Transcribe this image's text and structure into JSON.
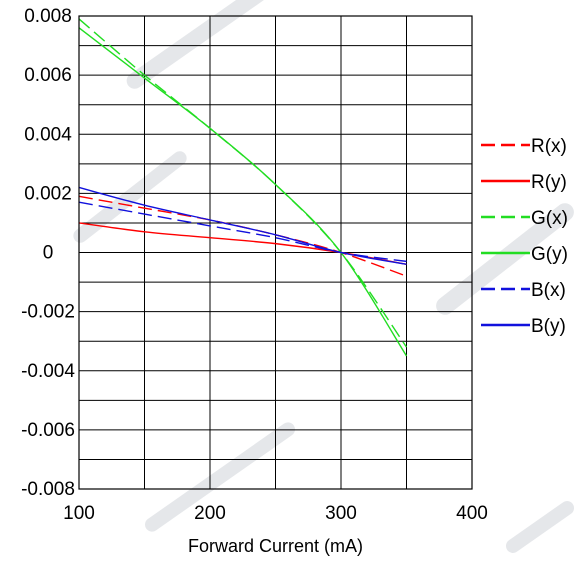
{
  "chart_data": {
    "type": "line",
    "title": "",
    "xlabel": "Forward Current (mA)",
    "ylabel": "",
    "xlim": [
      100,
      400
    ],
    "ylim": [
      -0.008,
      0.008
    ],
    "x_ticks": [
      100,
      200,
      300,
      400
    ],
    "y_ticks": [
      0.008,
      0.006,
      0.004,
      0.002,
      0,
      -0.002,
      -0.004,
      -0.006,
      -0.008
    ],
    "y_tick_labels": [
      "0.008",
      "0.006",
      "0.004",
      "0.002",
      "0",
      "-0.002",
      "-0.004",
      "-0.006",
      "-0.008"
    ],
    "grid": true,
    "legend_position": "right",
    "series": [
      {
        "name": "R(x)",
        "color": "#ff0000",
        "dash": true,
        "x": [
          100,
          150,
          200,
          250,
          300,
          350
        ],
        "y": [
          0.0019,
          0.0015,
          0.0011,
          0.0006,
          0.0,
          -0.0008
        ]
      },
      {
        "name": "R(y)",
        "color": "#ff0000",
        "dash": false,
        "x": [
          100,
          150,
          200,
          250,
          300,
          350
        ],
        "y": [
          0.001,
          0.0007,
          0.0005,
          0.0003,
          0.0,
          -0.0004
        ]
      },
      {
        "name": "G(x)",
        "color": "#22dd22",
        "dash": true,
        "x": [
          100,
          150,
          200,
          250,
          300,
          350
        ],
        "y": [
          0.0079,
          0.006,
          0.0042,
          0.0023,
          0.0,
          -0.0032
        ]
      },
      {
        "name": "G(y)",
        "color": "#22dd22",
        "dash": false,
        "x": [
          100,
          150,
          200,
          250,
          300,
          350
        ],
        "y": [
          0.0076,
          0.0059,
          0.0042,
          0.0023,
          0.0,
          -0.0035
        ]
      },
      {
        "name": "B(x)",
        "color": "#1111dd",
        "dash": true,
        "x": [
          100,
          150,
          200,
          250,
          300,
          350
        ],
        "y": [
          0.0017,
          0.0013,
          0.0009,
          0.0005,
          0.0,
          -0.0003
        ]
      },
      {
        "name": "B(y)",
        "color": "#1111dd",
        "dash": false,
        "x": [
          100,
          150,
          200,
          250,
          300,
          350
        ],
        "y": [
          0.0022,
          0.0016,
          0.0011,
          0.0006,
          0.0,
          -0.0004
        ]
      }
    ]
  }
}
